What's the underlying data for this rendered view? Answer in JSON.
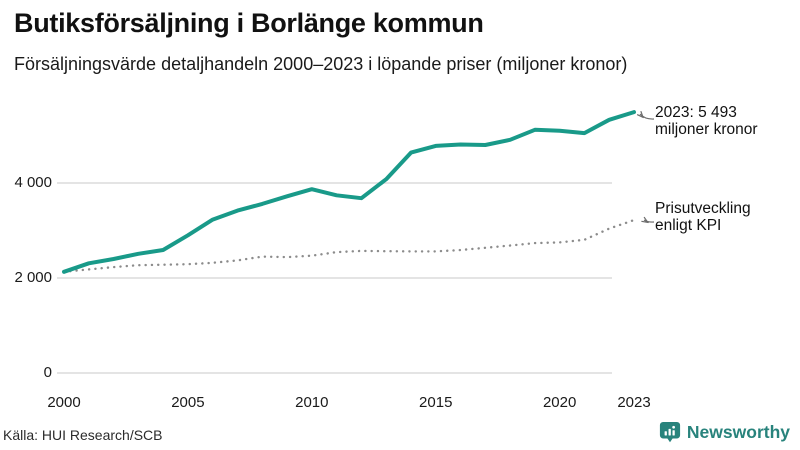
{
  "header": {
    "title": "Butiksförsäljning i Borlänge kommun",
    "subtitle": "Försäljningsvärde detaljhandeln 2000–2023 i löpande priser (miljoner kronor)"
  },
  "chart_data": {
    "type": "line",
    "title": "Butiksförsäljning i Borlänge kommun",
    "subtitle": "Försäljningsvärde detaljhandeln 2000–2023 i löpande priser (miljoner kronor)",
    "unit": "miljoner kronor",
    "x": [
      2000,
      2001,
      2002,
      2003,
      2004,
      2005,
      2006,
      2007,
      2008,
      2009,
      2010,
      2011,
      2012,
      2013,
      2014,
      2015,
      2016,
      2017,
      2018,
      2019,
      2020,
      2021,
      2022,
      2023
    ],
    "series": [
      {
        "name": "Butiksförsäljning i löpande priser",
        "color": "#199a89",
        "style": "solid",
        "values": [
          2130,
          2310,
          2400,
          2510,
          2590,
          2900,
          3230,
          3420,
          3560,
          3720,
          3870,
          3740,
          3680,
          4080,
          4640,
          4780,
          4810,
          4800,
          4910,
          5120,
          5100,
          5050,
          5330,
          5493
        ]
      },
      {
        "name": "Prisutveckling enligt KPI",
        "color": "#8c8c8c",
        "style": "dotted",
        "values": [
          2130,
          2180,
          2230,
          2270,
          2280,
          2290,
          2320,
          2370,
          2450,
          2440,
          2470,
          2545,
          2570,
          2565,
          2560,
          2560,
          2590,
          2635,
          2685,
          2735,
          2750,
          2805,
          3040,
          3220
        ]
      }
    ],
    "x_ticks": [
      "2000",
      "2005",
      "2010",
      "2015",
      "2020",
      "2023"
    ],
    "x_tick_years": [
      2000,
      2005,
      2010,
      2015,
      2020,
      2023
    ],
    "y_ticks": [
      {
        "value": 0,
        "label": "0"
      },
      {
        "value": 2000,
        "label": "2 000"
      },
      {
        "value": 4000,
        "label": "4 000"
      }
    ],
    "ylim": [
      0,
      5900
    ],
    "grid": "horizontal",
    "legend": "none",
    "annotations": [
      {
        "lines": [
          "2023: 5 493",
          "miljoner kronor"
        ],
        "target_series": "Butiksförsäljning i löpande priser",
        "target_year": 2023
      },
      {
        "lines": [
          "Prisutveckling",
          "enligt KPI"
        ],
        "target_series": "Prisutveckling enligt KPI",
        "target_year": 2023
      }
    ]
  },
  "footer": {
    "source": "Källa: HUI Research/SCB",
    "brand": "Newsworthy",
    "brand_color": "#28837c"
  }
}
